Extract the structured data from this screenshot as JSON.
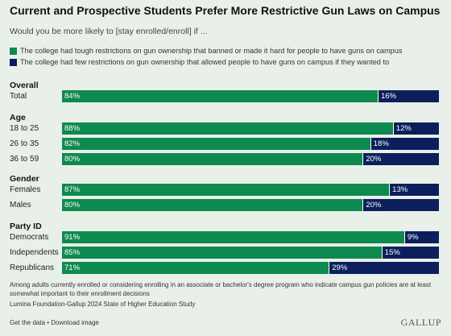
{
  "header": {
    "title": "Current and Prospective Students Prefer More Restrictive Gun Laws on Campus",
    "subtitle": "Would you be more likely to [stay enrolled/enroll] if ..."
  },
  "colors": {
    "restrictive": "#0f8a4f",
    "permissive": "#0c1f5c"
  },
  "chart_data": {
    "type": "bar",
    "orientation": "horizontal",
    "stacked": true,
    "series": [
      {
        "name": "The college had tough restrictions on gun ownership that banned or made it hard for people to have guns on campus"
      },
      {
        "name": "The college had few restrictions on gun ownership that allowed people to have guns on campus if they wanted to"
      }
    ],
    "groups": [
      {
        "name": "Overall",
        "rows": [
          {
            "label": "Total",
            "values": [
              84,
              16
            ]
          }
        ]
      },
      {
        "name": "Age",
        "rows": [
          {
            "label": "18 to 25",
            "values": [
              88,
              12
            ]
          },
          {
            "label": "26 to 35",
            "values": [
              82,
              18
            ]
          },
          {
            "label": "36 to 59",
            "values": [
              80,
              20
            ]
          }
        ]
      },
      {
        "name": "Gender",
        "rows": [
          {
            "label": "Females",
            "values": [
              87,
              13
            ]
          },
          {
            "label": "Males",
            "values": [
              80,
              20
            ]
          }
        ]
      },
      {
        "name": "Party ID",
        "rows": [
          {
            "label": "Democrats",
            "values": [
              91,
              9
            ]
          },
          {
            "label": "Independents",
            "values": [
              85,
              15
            ]
          },
          {
            "label": "Republicans",
            "values": [
              71,
              29
            ]
          }
        ]
      }
    ],
    "value_suffix": "%",
    "xlim": [
      0,
      100
    ]
  },
  "footer": {
    "note": "Among adults currently enrolled or considering enrolling in an associate or bachelor's degree program who indicate campus gun policies are at least somewhat important to their enrollment decisions",
    "source": "Lumina Foundation-Gallup 2024 State of Higher Education Study",
    "links": "Get the data • Download image",
    "logo": "GALLUP"
  }
}
